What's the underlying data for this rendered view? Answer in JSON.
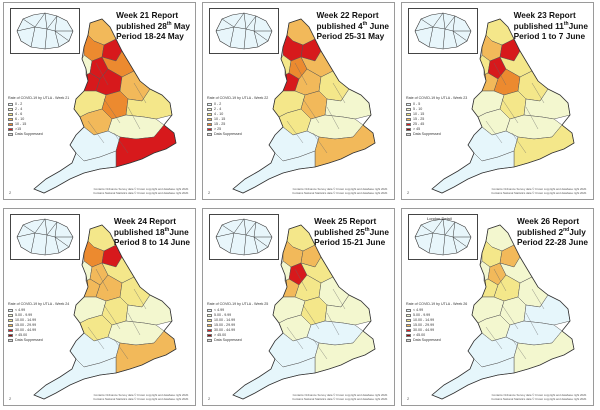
{
  "colors": {
    "suppressed": "#d9d9d9",
    "c1": "#e6f6fb",
    "c2": "#f3f7cf",
    "c3": "#f4e78a",
    "c4": "#f2b95a",
    "c5": "#ec8a2f",
    "c6": "#d7191c",
    "c7": "#8c0a0a"
  },
  "shared": {
    "credit_line1": "Contains Ordnance Survey data © Crown copyright and database right 2020.",
    "credit_line2": "Contains National Statistics data © Crown copyright and database right 2020.",
    "suppressed_label": "Data Suppressed",
    "london_label": "London Detail"
  },
  "panels": [
    {
      "report": "Week 21 Report",
      "published_pre": "published 28",
      "published_sup": "th",
      "published_post": " May",
      "period": "Period 18-24 May",
      "legend_title": "Rate of COVID-19 by UTLA - Week 21",
      "legend": [
        {
          "label": "0 - 2",
          "color": "c1"
        },
        {
          "label": "2 - 4",
          "color": "c2"
        },
        {
          "label": "4 - 6",
          "color": "c3"
        },
        {
          "label": "6 - 10",
          "color": "c4"
        },
        {
          "label": "10 - 15",
          "color": "c5"
        },
        {
          "label": ">15",
          "color": "c6"
        }
      ],
      "show_suppressed": true,
      "show_london_label": false,
      "page": "2",
      "fills": [
        "c4",
        "c5",
        "c6",
        "c2",
        "c6",
        "c5",
        "c6",
        "c6",
        "c4",
        "c3",
        "c5",
        "c3",
        "c4",
        "c2",
        "c1",
        "c6"
      ]
    },
    {
      "report": "Week 22 Report",
      "published_pre": "published 4",
      "published_sup": "th",
      "published_post": " June",
      "period": "Period 25-31 May",
      "legend_title": "Rate of COVID-19 by UTLA - Week 22",
      "legend": [
        {
          "label": "0 - 2",
          "color": "c1"
        },
        {
          "label": "2 - 4",
          "color": "c2"
        },
        {
          "label": "4 - 10",
          "color": "c3"
        },
        {
          "label": "10 - 15",
          "color": "c4"
        },
        {
          "label": "15 - 25",
          "color": "c5"
        },
        {
          "label": "> 25",
          "color": "c6"
        }
      ],
      "show_suppressed": true,
      "show_london_label": false,
      "page": "2",
      "fills": [
        "c4",
        "c6",
        "c6",
        "c3",
        "c5",
        "c4",
        "c6",
        "c4",
        "c3",
        "c3",
        "c4",
        "c2",
        "c3",
        "c2",
        "c1",
        "c4"
      ]
    },
    {
      "report": "Week 23 Report",
      "published_pre": "published 11",
      "published_sup": "th",
      "published_post": "June",
      "period": "Period 1 to 7 June",
      "legend_title": "Rate of COVID-19 by UTLA - Week 23",
      "legend": [
        {
          "label": "0 - 5",
          "color": "c1"
        },
        {
          "label": "5 - 10",
          "color": "c2"
        },
        {
          "label": "10 - 15",
          "color": "c3"
        },
        {
          "label": "15 - 25",
          "color": "c4"
        },
        {
          "label": "25 - 45",
          "color": "c6"
        },
        {
          "label": "> 45",
          "color": "c7"
        }
      ],
      "show_suppressed": true,
      "show_london_label": false,
      "page": "2",
      "fills": [
        "c3",
        "c4",
        "c6",
        "c3",
        "c6",
        "c3",
        "c4",
        "c5",
        "c3",
        "c2",
        "c3",
        "c2",
        "c2",
        "c2",
        "c1",
        "c3"
      ]
    },
    {
      "report": "Week 24 Report",
      "published_pre": "published 18",
      "published_sup": "th",
      "published_post": "June",
      "period": "Period 8 to 14 June",
      "legend_title": "Rate of COVID-19 by UTLA - Week 24",
      "legend": [
        {
          "label": "< 4.99",
          "color": "c1"
        },
        {
          "label": "5.00 - 9.99",
          "color": "c2"
        },
        {
          "label": "10.00 - 14.99",
          "color": "c3"
        },
        {
          "label": "15.00 - 29.99",
          "color": "c4"
        },
        {
          "label": "30.00 - 44.99",
          "color": "c6"
        },
        {
          "label": "> 45.00",
          "color": "c7"
        }
      ],
      "show_suppressed": true,
      "show_london_label": false,
      "page": "2",
      "fills": [
        "c3",
        "c5",
        "c6",
        "c2",
        "c4",
        "c3",
        "c4",
        "c4",
        "c3",
        "c2",
        "c3",
        "c2",
        "c3",
        "c2",
        "c1",
        "c4"
      ]
    },
    {
      "report": "Week 25 Report",
      "published_pre": "published 25",
      "published_sup": "th",
      "published_post": "June",
      "period": "Period 15-21 June",
      "legend_title": "Rate of COVID-19 by UTLA - Week 25",
      "legend": [
        {
          "label": "< 4.99",
          "color": "c1"
        },
        {
          "label": "5.00 - 9.99",
          "color": "c2"
        },
        {
          "label": "10.00 - 14.99",
          "color": "c3"
        },
        {
          "label": "15.00 - 29.99",
          "color": "c4"
        },
        {
          "label": "30.00 - 44.99",
          "color": "c6"
        },
        {
          "label": "> 45.00",
          "color": "c7"
        }
      ],
      "show_suppressed": true,
      "show_london_label": false,
      "page": "2",
      "fills": [
        "c3",
        "c4",
        "c4",
        "c2",
        "c6",
        "c3",
        "c4",
        "c3",
        "c2",
        "c2",
        "c3",
        "c2",
        "c2",
        "c1",
        "c1",
        "c2"
      ]
    },
    {
      "report": "Week 26 Report",
      "published_pre": "published 2",
      "published_sup": "nd",
      "published_post": "July",
      "period": "Period 22-28 June",
      "legend_title": "Rate of COVID-19 by UTLA - Week 26",
      "legend": [
        {
          "label": "< 4.99",
          "color": "c1"
        },
        {
          "label": "5.00 - 9.99",
          "color": "c2"
        },
        {
          "label": "10.00 - 14.99",
          "color": "c3"
        },
        {
          "label": "15.00 - 29.99",
          "color": "c4"
        },
        {
          "label": "30.00 - 44.99",
          "color": "c6"
        },
        {
          "label": "> 45.00",
          "color": "c7"
        }
      ],
      "show_suppressed": true,
      "show_london_label": true,
      "page": "2",
      "fills": [
        "c2",
        "c3",
        "c4",
        "c2",
        "c4",
        "c2",
        "c3",
        "c3",
        "c2",
        "c2",
        "c2",
        "c1",
        "c2",
        "c1",
        "c1",
        "c2"
      ]
    }
  ]
}
